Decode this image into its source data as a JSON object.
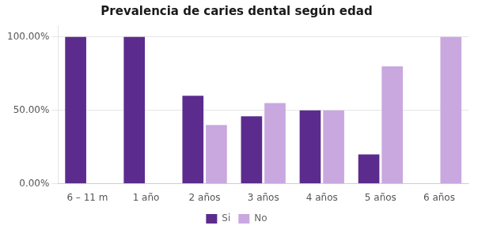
{
  "chart_data": {
    "type": "bar",
    "title": "Prevalencia de caries dental según edad",
    "categories": [
      "6 – 11 m",
      "1 año",
      "2 años",
      "3 años",
      "4 años",
      "5 años",
      "6 años"
    ],
    "series": [
      {
        "name": "Si",
        "color": "#5b2c8d",
        "values": [
          100,
          100,
          60,
          46,
          50,
          20,
          0
        ]
      },
      {
        "name": "No",
        "color": "#c9a8e0",
        "values": [
          0,
          0,
          40,
          55,
          50,
          80,
          100
        ]
      }
    ],
    "ylim": [
      0,
      108
    ],
    "yticks": [
      {
        "value": 0,
        "label": "0.00%"
      },
      {
        "value": 50,
        "label": "50.00%"
      },
      {
        "value": 100,
        "label": "100.00%"
      }
    ],
    "grid": true,
    "legend": "bottom"
  }
}
